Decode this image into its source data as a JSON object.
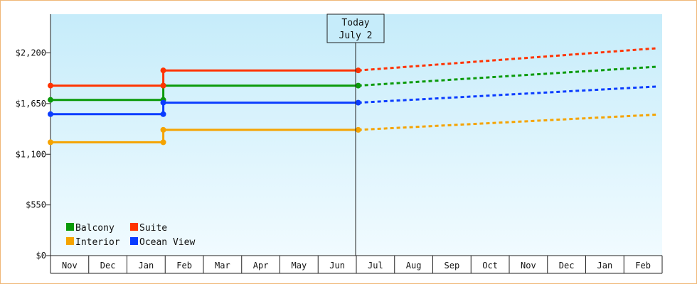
{
  "chart_data": {
    "type": "line",
    "step": true,
    "title": "",
    "xlabel": "",
    "ylabel": "",
    "months": [
      "Nov",
      "Dec",
      "Jan",
      "Feb",
      "Mar",
      "Apr",
      "May",
      "Jun",
      "Jul",
      "Aug",
      "Sep",
      "Oct",
      "Nov",
      "Dec",
      "Jan",
      "Feb"
    ],
    "ylim": [
      0,
      2620
    ],
    "yticks": [
      0,
      550,
      1100,
      1650,
      2200
    ],
    "ytick_labels": [
      "$0",
      "$550",
      "$1,100",
      "$1,650",
      "$2,200"
    ],
    "today": {
      "line1": "Today",
      "line2": "July 2"
    },
    "grid": false,
    "legend": "bottom-left",
    "series": [
      {
        "name": "Balcony",
        "color": "#0a9a0a",
        "actual": [
          [
            0,
            1690
          ],
          [
            2.95,
            1690
          ],
          [
            2.95,
            1845
          ],
          [
            8.05,
            1845
          ]
        ],
        "projected": [
          [
            8.05,
            1845
          ],
          [
            15.85,
            2050
          ]
        ]
      },
      {
        "name": "Suite",
        "color": "#ff3300",
        "actual": [
          [
            0,
            1845
          ],
          [
            2.95,
            1845
          ],
          [
            2.95,
            2010
          ],
          [
            8.05,
            2010
          ]
        ],
        "projected": [
          [
            8.05,
            2010
          ],
          [
            15.85,
            2250
          ]
        ]
      },
      {
        "name": "Interior",
        "color": "#f5a300",
        "actual": [
          [
            0,
            1230
          ],
          [
            2.95,
            1230
          ],
          [
            2.95,
            1365
          ],
          [
            8.05,
            1365
          ]
        ],
        "projected": [
          [
            8.05,
            1365
          ],
          [
            15.85,
            1530
          ]
        ]
      },
      {
        "name": "Ocean View",
        "color": "#0a3cff",
        "actual": [
          [
            0,
            1535
          ],
          [
            2.95,
            1535
          ],
          [
            2.95,
            1660
          ],
          [
            8.05,
            1660
          ]
        ],
        "projected": [
          [
            8.05,
            1660
          ],
          [
            15.85,
            1835
          ]
        ]
      }
    ]
  }
}
